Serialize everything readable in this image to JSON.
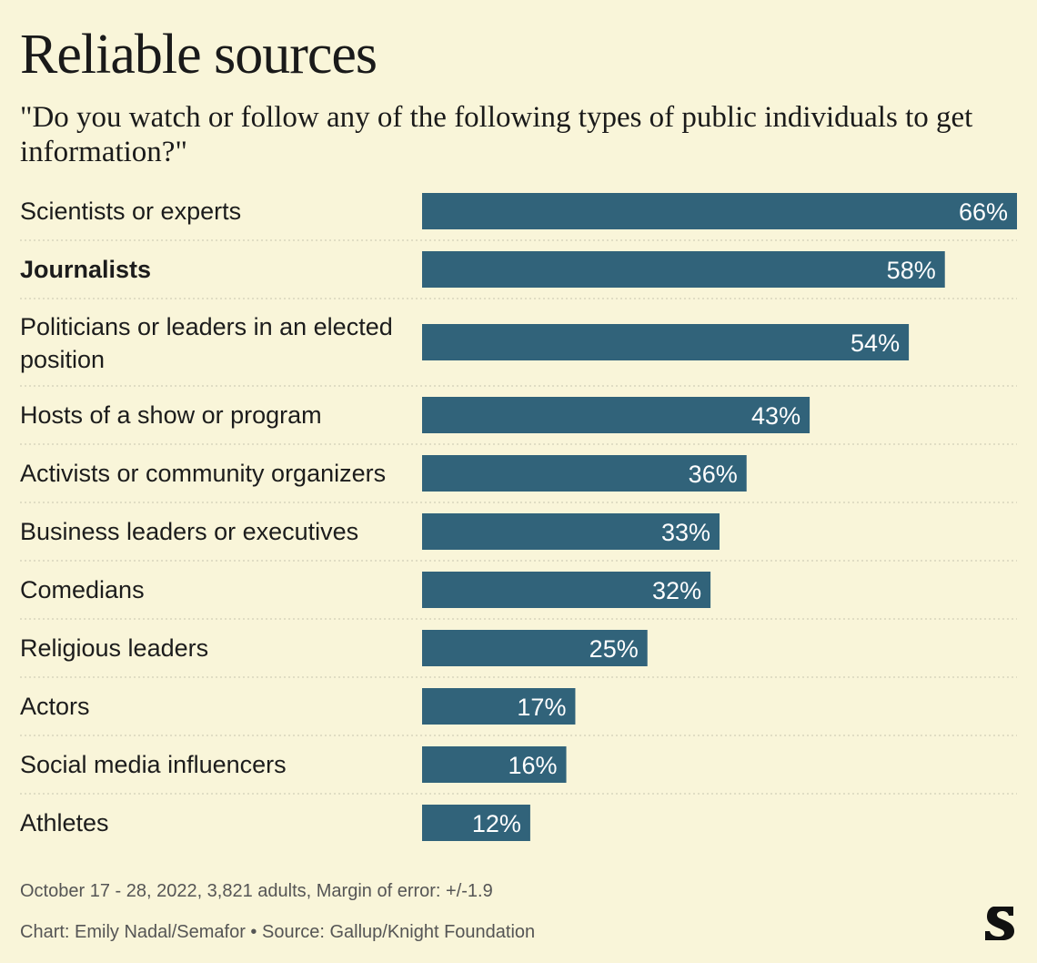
{
  "title": "Reliable sources",
  "subtitle": "\"Do you watch or follow any of the following types of public individuals to get information?\"",
  "footer": {
    "note": "October 17 - 28, 2022, 3,821 adults, Margin of error: +/-1.9",
    "credit": "Chart: Emily Nadal/Semafor • Source: Gallup/Knight Foundation"
  },
  "logo_icon": "semafor-s-logo-icon",
  "colors": {
    "background": "#f9f5d9",
    "bar": "#31637a",
    "bar_label": "#ffffff",
    "divider": "#c8c5b0"
  },
  "chart_data": {
    "type": "bar",
    "orientation": "horizontal",
    "categories": [
      "Scientists or experts",
      "Journalists",
      "Politicians or leaders in an elected position",
      "Hosts of a show or program",
      "Activists or community organizers",
      "Business leaders or executives",
      "Comedians",
      "Religious leaders",
      "Actors",
      "Social media influencers",
      "Athletes"
    ],
    "values": [
      66,
      58,
      54,
      43,
      36,
      33,
      32,
      25,
      17,
      16,
      12
    ],
    "value_labels": [
      "66%",
      "58%",
      "54%",
      "43%",
      "36%",
      "33%",
      "32%",
      "25%",
      "17%",
      "16%",
      "12%"
    ],
    "highlight": "Journalists",
    "xlim": [
      0,
      66
    ],
    "grid": false,
    "legend": "none"
  }
}
